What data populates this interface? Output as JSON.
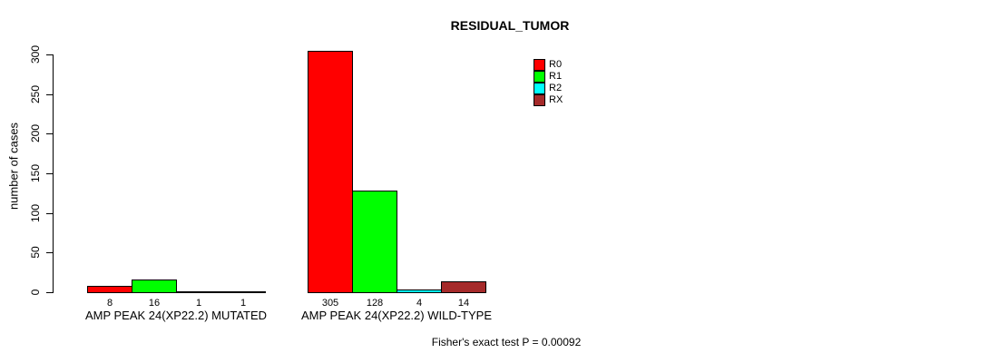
{
  "chart_data": {
    "type": "bar",
    "title": "RESIDUAL_TUMOR",
    "ylabel": "number of cases",
    "xlabel": "",
    "ylim": [
      0,
      300
    ],
    "yticks": [
      0,
      50,
      100,
      150,
      200,
      250,
      300
    ],
    "grid": false,
    "legend_position": "top-right",
    "categories": [
      "AMP PEAK 24(XP22.2) MUTATED",
      "AMP PEAK 24(XP22.2) WILD-TYPE"
    ],
    "series": [
      {
        "name": "R0",
        "color": "#ff0000",
        "values": [
          8,
          305
        ]
      },
      {
        "name": "R1",
        "color": "#00ff00",
        "values": [
          16,
          128
        ]
      },
      {
        "name": "R2",
        "color": "#00ffff",
        "values": [
          1,
          4
        ]
      },
      {
        "name": "RX",
        "color": "#a52a2a",
        "values": [
          1,
          14
        ]
      }
    ],
    "bar_value_labels": [
      [
        8,
        16,
        1,
        1
      ],
      [
        305,
        128,
        4,
        14
      ]
    ],
    "annotation": "Fisher's exact test P = 0.00092"
  }
}
